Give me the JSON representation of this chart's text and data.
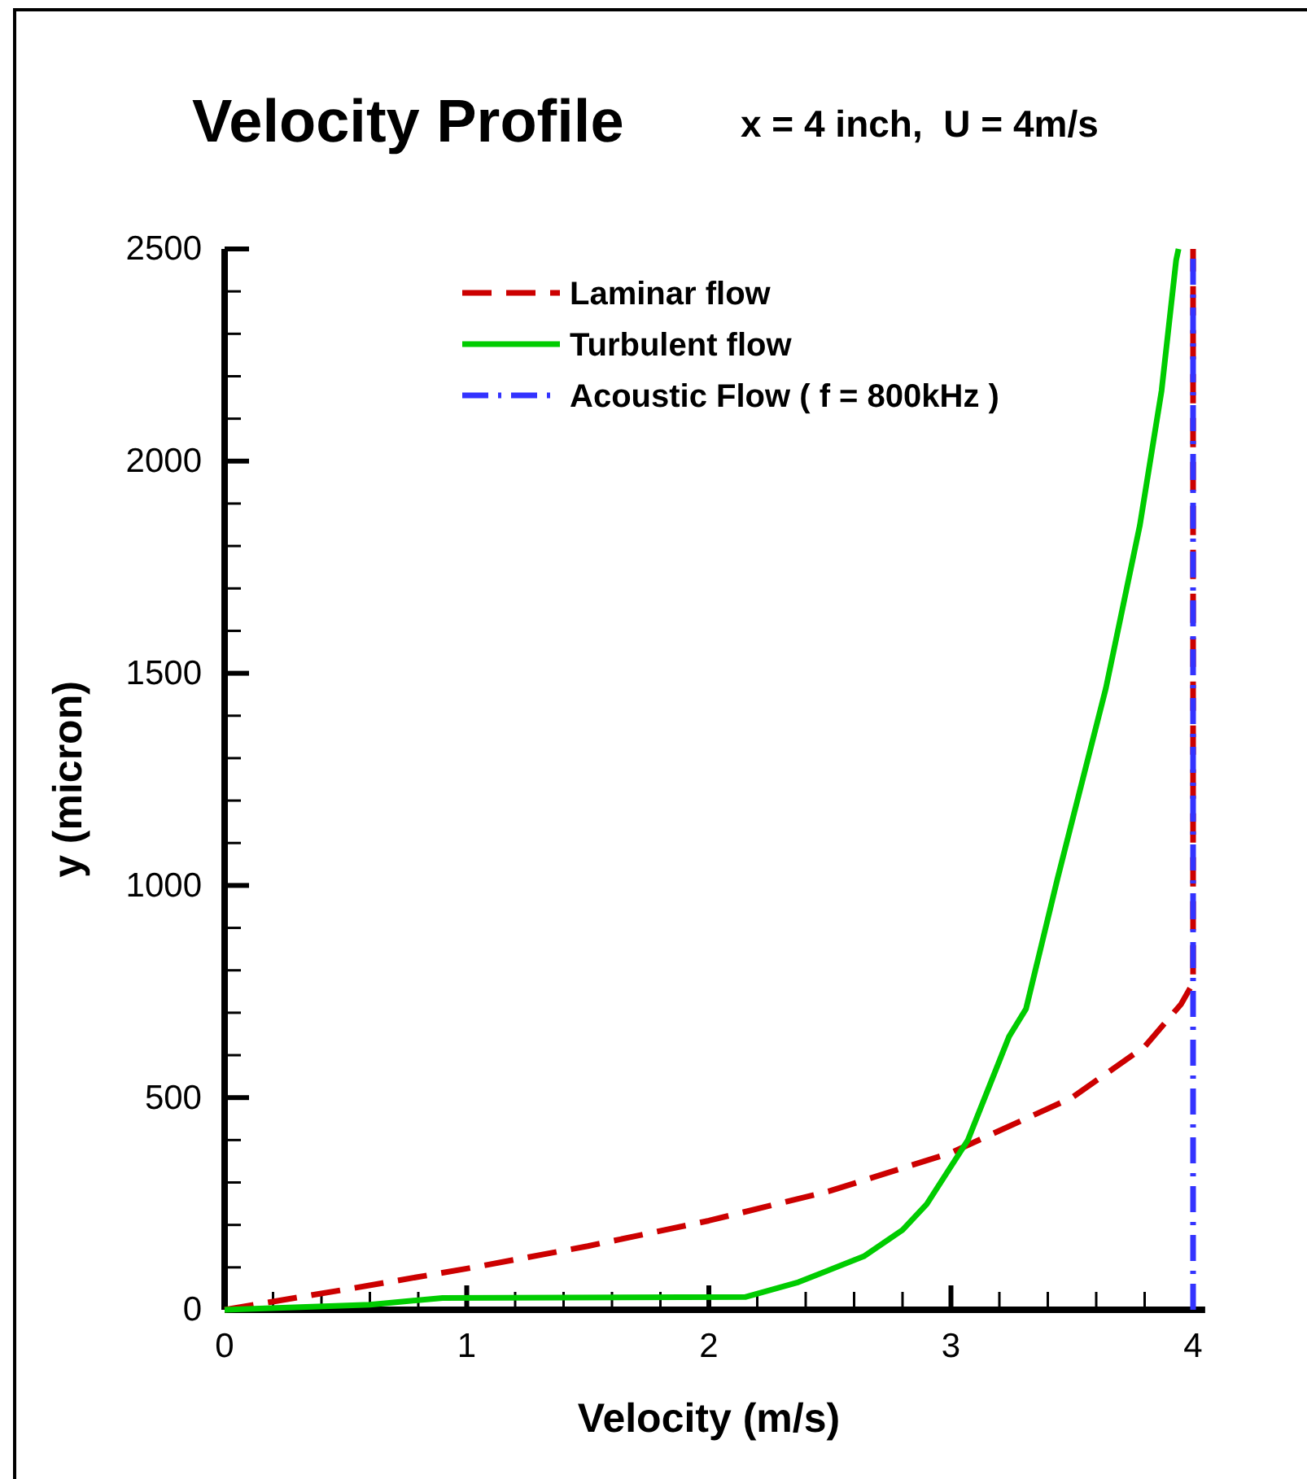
{
  "chart_data": {
    "type": "line",
    "title": "Velocity Profile",
    "subtitle": "x = 4 inch,  U = 4m/s",
    "xlabel": "Velocity (m/s)",
    "ylabel": "y (micron)",
    "xlim": [
      0,
      4.05
    ],
    "ylim": [
      0,
      2500
    ],
    "xticks": [
      0,
      {
        "value": 0.2,
        "label": null
      },
      {
        "value": 0.4,
        "label": null
      },
      {
        "value": 0.6,
        "label": null
      },
      {
        "value": 0.8,
        "label": null
      },
      1,
      {
        "value": 1.2,
        "label": null
      },
      {
        "value": 1.4,
        "label": null
      },
      {
        "value": 1.6,
        "label": null
      },
      {
        "value": 1.8,
        "label": null
      },
      2,
      {
        "value": 2.2,
        "label": null
      },
      {
        "value": 2.4,
        "label": null
      },
      {
        "value": 2.6,
        "label": null
      },
      {
        "value": 2.8,
        "label": null
      },
      3,
      {
        "value": 3.2,
        "label": null
      },
      {
        "value": 3.4,
        "label": null
      },
      {
        "value": 3.6,
        "label": null
      },
      {
        "value": 3.8,
        "label": null
      },
      4
    ],
    "yticks": [
      0,
      {
        "value": 100,
        "label": null
      },
      {
        "value": 200,
        "label": null
      },
      {
        "value": 300,
        "label": null
      },
      {
        "value": 400,
        "label": null
      },
      500,
      {
        "value": 600,
        "label": null
      },
      {
        "value": 700,
        "label": null
      },
      {
        "value": 800,
        "label": null
      },
      {
        "value": 900,
        "label": null
      },
      1000,
      {
        "value": 1100,
        "label": null
      },
      {
        "value": 1200,
        "label": null
      },
      {
        "value": 1300,
        "label": null
      },
      {
        "value": 1400,
        "label": null
      },
      1500,
      {
        "value": 1600,
        "label": null
      },
      {
        "value": 1700,
        "label": null
      },
      {
        "value": 1800,
        "label": null
      },
      {
        "value": 1900,
        "label": null
      },
      2000,
      {
        "value": 2100,
        "label": null
      },
      {
        "value": 2200,
        "label": null
      },
      {
        "value": 2300,
        "label": null
      },
      {
        "value": 2400,
        "label": null
      },
      2500
    ],
    "grid": false,
    "legend": "top",
    "series": [
      {
        "name": "Laminar flow",
        "color": "#cc0000",
        "line_style": "dashed",
        "x": [
          0,
          0.5,
          1,
          1.5,
          2,
          2.5,
          3,
          3.5,
          3.8,
          3.95,
          4,
          4
        ],
        "values": [
          0,
          48,
          97,
          150,
          210,
          280,
          370,
          500,
          620,
          720,
          770,
          2500
        ]
      },
      {
        "name": "Turbulent flow",
        "color": "#00cc00",
        "line_style": "solid",
        "x": [
          0,
          0.6,
          0.9,
          2.15,
          2.37,
          2.64,
          2.8,
          2.9,
          3.07,
          3.24,
          3.31,
          3.44,
          3.64,
          3.78,
          3.87,
          3.93,
          3.94
        ],
        "values": [
          0,
          12,
          28,
          30,
          65,
          126,
          188,
          249,
          400,
          644,
          709,
          1016,
          1465,
          1848,
          2166,
          2473,
          2500
        ]
      },
      {
        "name": "Acoustic Flow ( f = 800kHz )",
        "color": "#3333ff",
        "line_style": "dashdot",
        "x": [
          4,
          4
        ],
        "values": [
          0,
          2500
        ]
      }
    ]
  }
}
